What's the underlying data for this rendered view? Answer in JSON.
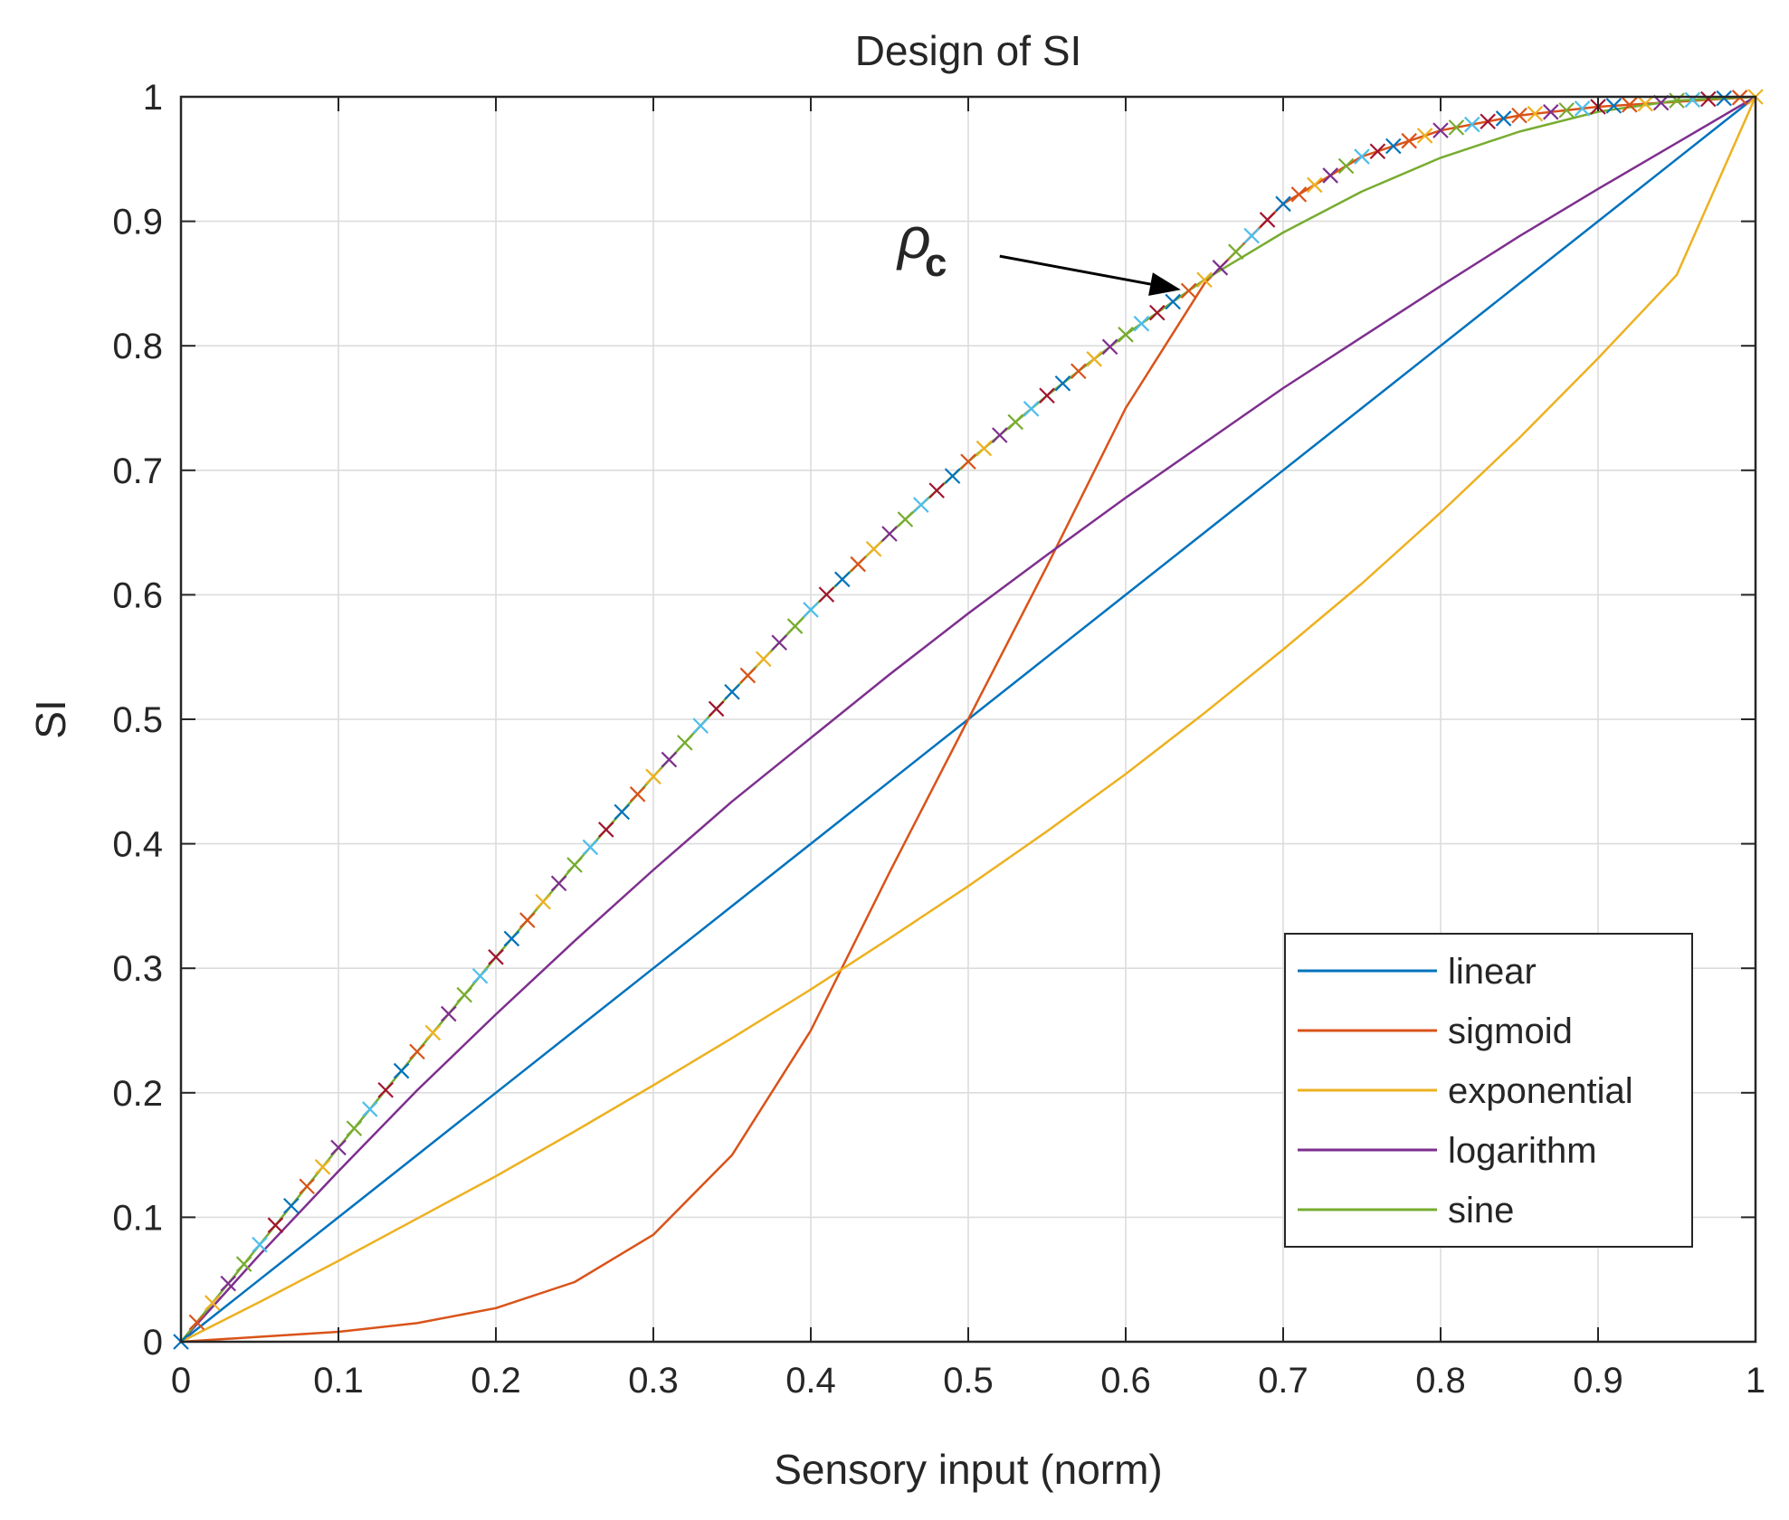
{
  "chart_data": {
    "type": "line",
    "title": "Design of SI",
    "xlabel": "Sensory input (norm)",
    "ylabel": "SI",
    "xlim": [
      0,
      1
    ],
    "ylim": [
      0,
      1
    ],
    "grid": true,
    "x_ticks": [
      0,
      0.1,
      0.2,
      0.3,
      0.4,
      0.5,
      0.6,
      0.7,
      0.8,
      0.9,
      1
    ],
    "x_tick_labels": [
      "0",
      "0.1",
      "0.2",
      "0.3",
      "0.4",
      "0.5",
      "0.6",
      "0.7",
      "0.8",
      "0.9",
      "1"
    ],
    "y_ticks": [
      0,
      0.1,
      0.2,
      0.3,
      0.4,
      0.5,
      0.6,
      0.7,
      0.8,
      0.9,
      1
    ],
    "y_tick_labels": [
      "0",
      "0.1",
      "0.2",
      "0.3",
      "0.4",
      "0.5",
      "0.6",
      "0.7",
      "0.8",
      "0.9",
      "1"
    ],
    "legend_position": "bottom-right",
    "x": [
      0,
      0.05,
      0.1,
      0.15,
      0.2,
      0.25,
      0.3,
      0.35,
      0.4,
      0.45,
      0.5,
      0.55,
      0.6,
      0.65,
      0.7,
      0.75,
      0.8,
      0.85,
      0.9,
      0.95,
      1
    ],
    "series": [
      {
        "name": "linear",
        "color": "#0072BD",
        "values": [
          0,
          0.05,
          0.1,
          0.15,
          0.2,
          0.25,
          0.3,
          0.35,
          0.4,
          0.45,
          0.5,
          0.55,
          0.6,
          0.65,
          0.7,
          0.75,
          0.8,
          0.85,
          0.9,
          0.95,
          1
        ]
      },
      {
        "name": "sigmoid",
        "color": "#D95319",
        "values": [
          0,
          0.004,
          0.008,
          0.015,
          0.027,
          0.048,
          0.086,
          0.15,
          0.25,
          0.377,
          0.5,
          0.623,
          0.75,
          0.85,
          0.914,
          0.952,
          0.973,
          0.985,
          0.992,
          0.996,
          1
        ]
      },
      {
        "name": "exponential",
        "color": "#EDB120",
        "values": [
          0,
          0.032,
          0.065,
          0.099,
          0.133,
          0.169,
          0.206,
          0.244,
          0.283,
          0.324,
          0.366,
          0.41,
          0.456,
          0.505,
          0.556,
          0.609,
          0.666,
          0.726,
          0.79,
          0.857,
          1
        ]
      },
      {
        "name": "logarithm",
        "color": "#7E2F8E",
        "values": [
          0,
          0.07,
          0.137,
          0.202,
          0.263,
          0.322,
          0.379,
          0.434,
          0.485,
          0.536,
          0.585,
          0.632,
          0.678,
          0.722,
          0.766,
          0.807,
          0.848,
          0.888,
          0.926,
          0.963,
          1
        ]
      },
      {
        "name": "sine",
        "color": "#77AC30",
        "values": [
          0,
          0.078,
          0.156,
          0.233,
          0.309,
          0.383,
          0.454,
          0.522,
          0.588,
          0.649,
          0.707,
          0.76,
          0.809,
          0.853,
          0.891,
          0.924,
          0.951,
          0.972,
          0.988,
          0.997,
          1
        ]
      }
    ],
    "marker_series": {
      "name": "envelope (x markers)",
      "marker": "x",
      "step": 0.01,
      "colors": [
        "#0072BD",
        "#D95319",
        "#EDB120",
        "#7E2F8E",
        "#77AC30",
        "#4DBEEE",
        "#A2142F"
      ],
      "rule": "max(sine, sigmoid)"
    },
    "annotations": [
      {
        "text": "ρ",
        "subscript": "c",
        "points_to": [
          0.635,
          0.845
        ],
        "arrow_from": [
          0.52,
          0.872
        ]
      }
    ]
  }
}
